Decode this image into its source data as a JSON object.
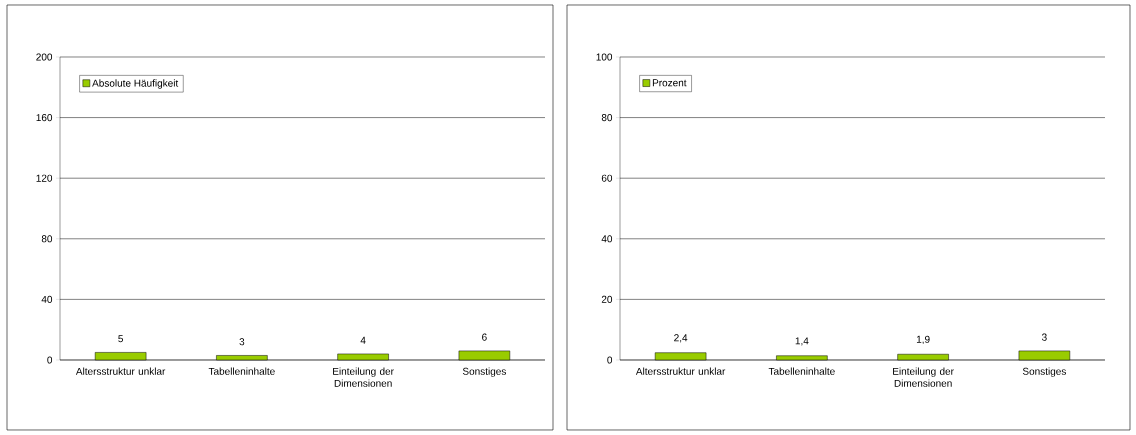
{
  "chart_data": [
    {
      "type": "bar",
      "categories": [
        "Altersstruktur unklar",
        "Tabelleninhalte",
        "Einteilung der Dimensionen",
        "Sonstiges"
      ],
      "series": [
        {
          "name": "Absolute Häufigkeit",
          "color": "#99cc00",
          "values": [
            5,
            3,
            4,
            6
          ]
        }
      ],
      "ylim": [
        0,
        200
      ],
      "yticks": [
        0,
        40,
        80,
        120,
        160,
        200
      ],
      "grid": "y",
      "legend": "top left",
      "data_labels": true
    },
    {
      "type": "bar",
      "categories": [
        "Altersstruktur unklar",
        "Tabelleninhalte",
        "Einteilung der Dimensionen",
        "Sonstiges"
      ],
      "series": [
        {
          "name": "Prozent",
          "color": "#99cc00",
          "values": [
            2.4,
            1.4,
            1.9,
            3
          ],
          "value_labels": [
            "2,4",
            "1,4",
            "1,9",
            "3"
          ]
        }
      ],
      "ylim": [
        0,
        100
      ],
      "yticks": [
        0,
        20,
        40,
        60,
        80,
        100
      ],
      "grid": "y",
      "legend": "top left"
    }
  ]
}
